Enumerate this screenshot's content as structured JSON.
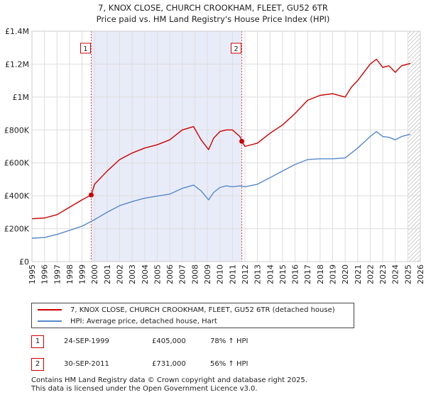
{
  "title_line1": "7, KNOX CLOSE, CHURCH CROOKHAM, FLEET, GU52 6TR",
  "title_line2": "Price paid vs. HM Land Registry's House Price Index (HPI)",
  "chart_data": {
    "type": "line",
    "xlim": [
      1995,
      2026
    ],
    "ylim": [
      0,
      1400000
    ],
    "x_ticks": [
      1995,
      1996,
      1997,
      1998,
      1999,
      2000,
      2001,
      2002,
      2003,
      2004,
      2005,
      2006,
      2007,
      2008,
      2009,
      2010,
      2011,
      2012,
      2013,
      2014,
      2015,
      2016,
      2017,
      2018,
      2019,
      2020,
      2021,
      2022,
      2023,
      2024,
      2025,
      2026
    ],
    "y_ticks": [
      {
        "value": 0,
        "label": "£0"
      },
      {
        "value": 200000,
        "label": "£200K"
      },
      {
        "value": 400000,
        "label": "£400K"
      },
      {
        "value": 600000,
        "label": "£600K"
      },
      {
        "value": 800000,
        "label": "£800K"
      },
      {
        "value": 1000000,
        "label": "£1M"
      },
      {
        "value": 1200000,
        "label": "£1.2M"
      },
      {
        "value": 1400000,
        "label": "£1.4M"
      }
    ],
    "grid": true,
    "ownership_span": [
      1999.73,
      2011.75
    ],
    "forecast_start": 2025.0,
    "series": [
      {
        "name": "7, KNOX CLOSE, CHURCH CROOKHAM, FLEET, GU52 6TR (detached house)",
        "color": "#cc0000",
        "x": [
          1995,
          1996,
          1997,
          1998,
          1999,
          1999.73,
          2000,
          2001,
          2002,
          2003,
          2004,
          2005,
          2006,
          2007,
          2007.9,
          2008.5,
          2009.1,
          2009.5,
          2010,
          2010.5,
          2011,
          2011.6,
          2011.75,
          2012,
          2013,
          2014,
          2015,
          2016,
          2017,
          2018,
          2019,
          2020,
          2020.5,
          2021,
          2022,
          2022.5,
          2023,
          2023.5,
          2024,
          2024.5,
          2025,
          2025.2
        ],
        "values": [
          260000,
          265000,
          285000,
          330000,
          375000,
          405000,
          470000,
          550000,
          620000,
          660000,
          690000,
          710000,
          740000,
          800000,
          820000,
          740000,
          680000,
          750000,
          790000,
          800000,
          800000,
          760000,
          731000,
          700000,
          720000,
          780000,
          830000,
          900000,
          980000,
          1010000,
          1020000,
          1000000,
          1060000,
          1100000,
          1200000,
          1230000,
          1180000,
          1190000,
          1150000,
          1190000,
          1200000,
          1205000
        ]
      },
      {
        "name": "HPI: Average price, detached house, Hart",
        "color": "#5588cc",
        "x": [
          1995,
          1996,
          1997,
          1998,
          1999,
          2000,
          2001,
          2002,
          2003,
          2004,
          2005,
          2006,
          2007,
          2007.9,
          2008.5,
          2009.1,
          2009.5,
          2010,
          2010.5,
          2011,
          2011.6,
          2012,
          2013,
          2014,
          2015,
          2016,
          2017,
          2018,
          2019,
          2020,
          2020.5,
          2021,
          2022,
          2022.5,
          2023,
          2023.5,
          2024,
          2024.5,
          2025,
          2025.2
        ],
        "values": [
          142000,
          146000,
          165000,
          190000,
          215000,
          255000,
          300000,
          340000,
          365000,
          385000,
          398000,
          410000,
          445000,
          465000,
          430000,
          375000,
          420000,
          450000,
          460000,
          455000,
          460000,
          455000,
          470000,
          510000,
          550000,
          590000,
          620000,
          625000,
          625000,
          630000,
          660000,
          690000,
          760000,
          790000,
          760000,
          755000,
          740000,
          760000,
          770000,
          772000
        ]
      }
    ],
    "sales": [
      {
        "label": "1",
        "x": 1999.73,
        "value": 405000
      },
      {
        "label": "2",
        "x": 2011.75,
        "value": 731000
      }
    ]
  },
  "legend": {
    "items": [
      {
        "label": "7, KNOX CLOSE, CHURCH CROOKHAM, FLEET, GU52 6TR (detached house)",
        "color": "#cc0000"
      },
      {
        "label": "HPI: Average price, detached house, Hart",
        "color": "#5588cc"
      }
    ]
  },
  "sales_table": [
    {
      "num": "1",
      "date": "24-SEP-1999",
      "price": "£405,000",
      "hpi": "78% ↑ HPI"
    },
    {
      "num": "2",
      "date": "30-SEP-2011",
      "price": "£731,000",
      "hpi": "56% ↑ HPI"
    }
  ],
  "footer": {
    "line1": "Contains HM Land Registry data © Crown copyright and database right 2025.",
    "line2": "This data is licensed under the Open Government Licence v3.0."
  }
}
